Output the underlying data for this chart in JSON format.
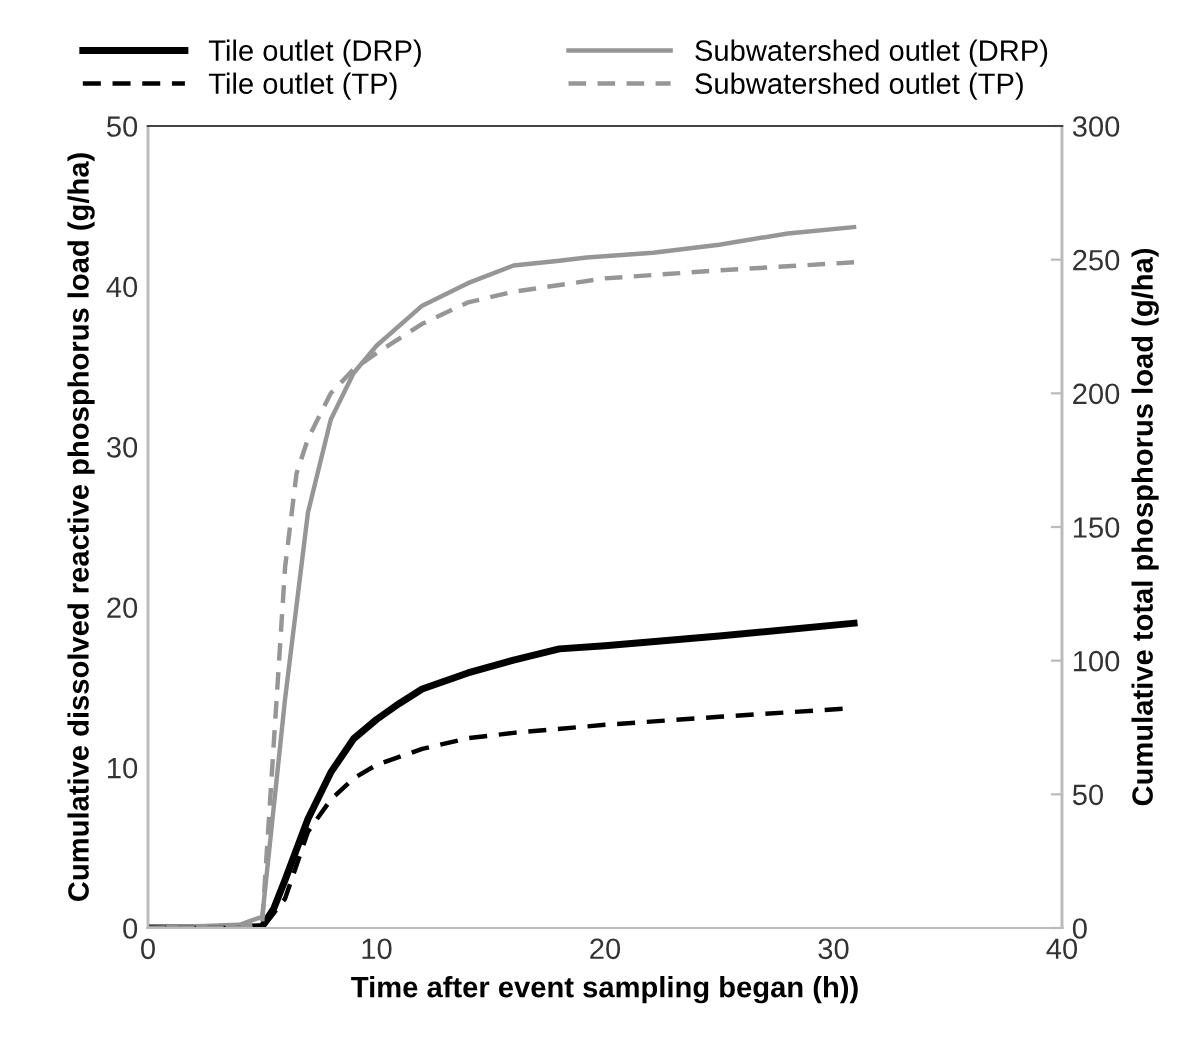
{
  "chart_data": {
    "type": "line",
    "xlabel": "Time after event sampling began (h))",
    "ylabel": "Cumulative dissolved reactive phosphorus load (g/ha)",
    "y2label": "Cumulative total phosphorus load (g/ha)",
    "xlim": [
      0,
      40
    ],
    "xticks": [
      0,
      10,
      20,
      30,
      40
    ],
    "ylim": [
      0,
      50
    ],
    "yticks": [
      0,
      10,
      20,
      30,
      40,
      50
    ],
    "y2lim": [
      0,
      300
    ],
    "y2ticks": [
      0,
      50,
      100,
      150,
      200,
      250,
      300
    ],
    "grid": false,
    "legend": "top",
    "marker": "none",
    "series": [
      {
        "name": "Tile outlet (DRP)",
        "color": "#000000",
        "line_style": "solid",
        "axis": "y",
        "x": [
          0,
          4,
          5,
          5.5,
          6,
          7,
          8,
          9,
          10,
          11,
          12,
          14,
          16,
          18,
          20,
          25,
          30.9
        ],
        "values": [
          0,
          0,
          0.1,
          1.2,
          3,
          6.8,
          9.7,
          11.8,
          13,
          14,
          14.9,
          15.9,
          16.7,
          17.4,
          17.6,
          18.2,
          19
        ]
      },
      {
        "name": "Tile outlet (TP)",
        "color": "#000000",
        "line_style": "dashed",
        "axis": "y2",
        "x": [
          0,
          4,
          5,
          6,
          7,
          8,
          9,
          10,
          12,
          14,
          16,
          20,
          25,
          30.4
        ],
        "values": [
          0,
          0,
          0,
          11,
          36,
          48,
          56,
          61,
          67,
          71,
          73,
          76,
          79,
          82
        ]
      },
      {
        "name": "Subwatershed outlet (DRP)",
        "color": "#969696",
        "line_style": "solid",
        "axis": "y",
        "x": [
          0,
          4,
          5,
          6,
          7,
          8,
          9,
          10,
          12,
          14,
          16,
          18,
          19.2,
          22.1,
          25,
          28,
          30.9
        ],
        "values": [
          0,
          0.2,
          0.7,
          14.3,
          25.9,
          31.7,
          34.6,
          36.3,
          38.8,
          40.2,
          41.3,
          41.6,
          41.8,
          42.1,
          42.6,
          43.3,
          43.7
        ]
      },
      {
        "name": "Subwatershed outlet (TP)",
        "color": "#969696",
        "line_style": "dashed",
        "axis": "y2",
        "x": [
          0,
          4,
          4.5,
          5,
          6,
          6.5,
          7,
          8,
          9,
          10,
          12,
          14,
          16,
          20,
          25,
          30.9
        ],
        "values": [
          0,
          0,
          1,
          2,
          135,
          170,
          183,
          200,
          209,
          215,
          226,
          234,
          238,
          243,
          246,
          249
        ]
      }
    ]
  }
}
